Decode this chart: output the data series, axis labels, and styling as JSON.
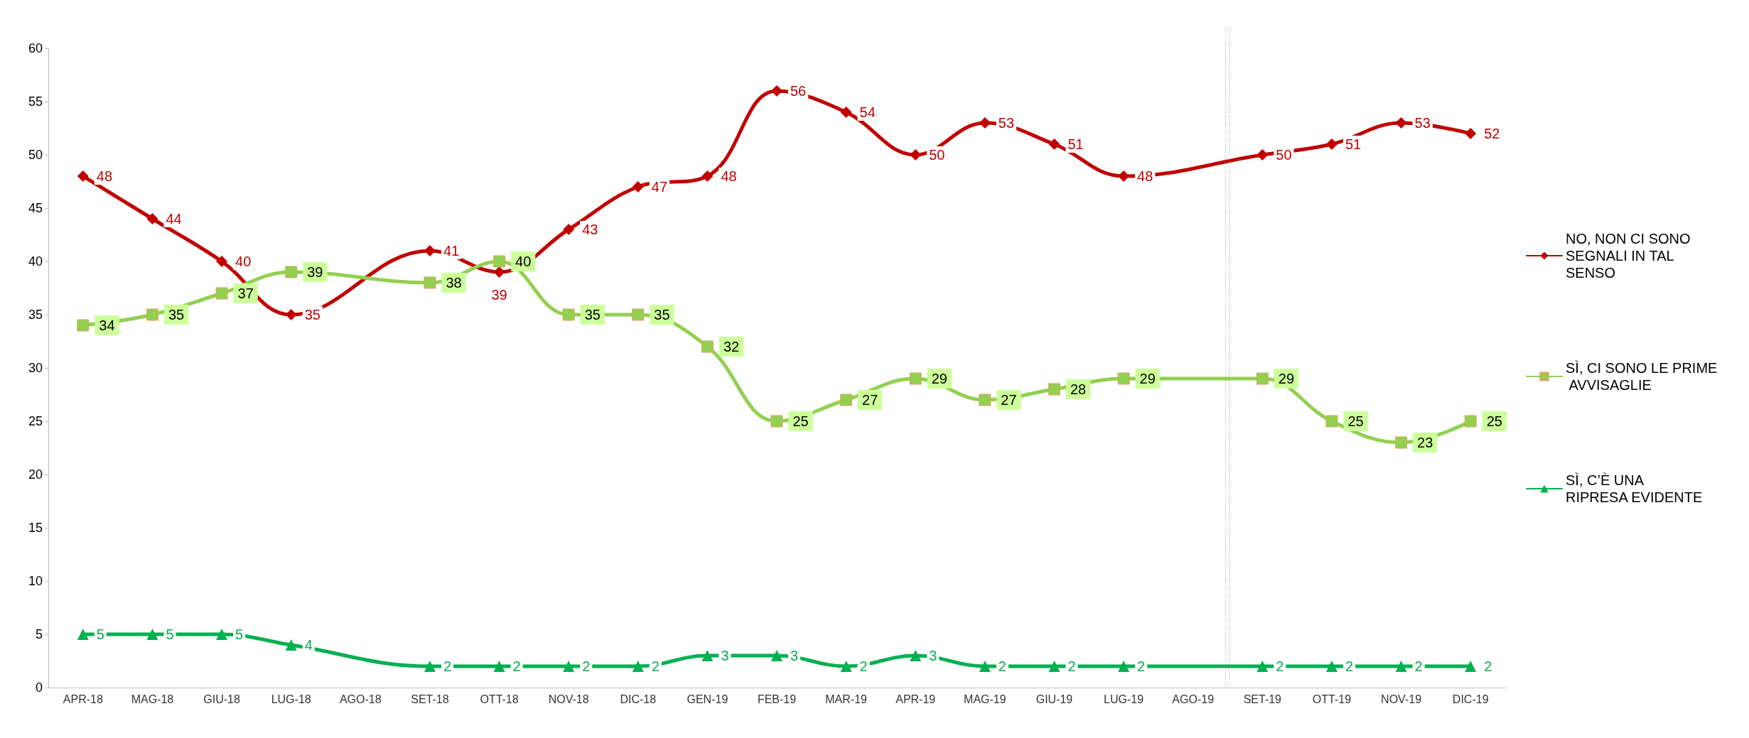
{
  "chart_data": {
    "type": "line",
    "categories": [
      "APR-18",
      "MAG-18",
      "GIU-18",
      "LUG-18",
      "AGO-18",
      "SET-18",
      "OTT-18",
      "NOV-18",
      "DIC-18",
      "GEN-19",
      "FEB-19",
      "MAR-19",
      "APR-19",
      "MAG-19",
      "GIU-19",
      "LUG-19",
      "AGO-19",
      "SET-19",
      "OTT-19",
      "NOV-19",
      "DIC-19"
    ],
    "series": [
      {
        "name": "NO, NON CI SONO SEGNALI IN TAL SENSO",
        "color": "#c00000",
        "marker": "diamond",
        "values": [
          48,
          44,
          40,
          35,
          null,
          41,
          39,
          43,
          47,
          48,
          56,
          54,
          50,
          53,
          51,
          48,
          null,
          50,
          51,
          53,
          52
        ]
      },
      {
        "name": "SÌ, CI SONO LE PRIME AVVISAGLIE",
        "color": "#92d050",
        "marker": "square",
        "values": [
          34,
          35,
          37,
          39,
          null,
          38,
          40,
          35,
          35,
          32,
          25,
          27,
          29,
          27,
          28,
          29,
          null,
          29,
          25,
          23,
          25
        ]
      },
      {
        "name": "SÌ, C’È UNA RIPRESA EVIDENTE",
        "color": "#00b050",
        "marker": "triangle",
        "values": [
          5,
          5,
          5,
          4,
          null,
          2,
          2,
          2,
          2,
          3,
          3,
          2,
          3,
          2,
          2,
          2,
          null,
          2,
          2,
          2,
          2
        ]
      }
    ],
    "ylim": [
      0,
      60
    ],
    "yticks": [
      0,
      5,
      10,
      15,
      20,
      25,
      30,
      35,
      40,
      45,
      50,
      55,
      60
    ],
    "grid": false,
    "legend": "right",
    "data_labels": true
  }
}
